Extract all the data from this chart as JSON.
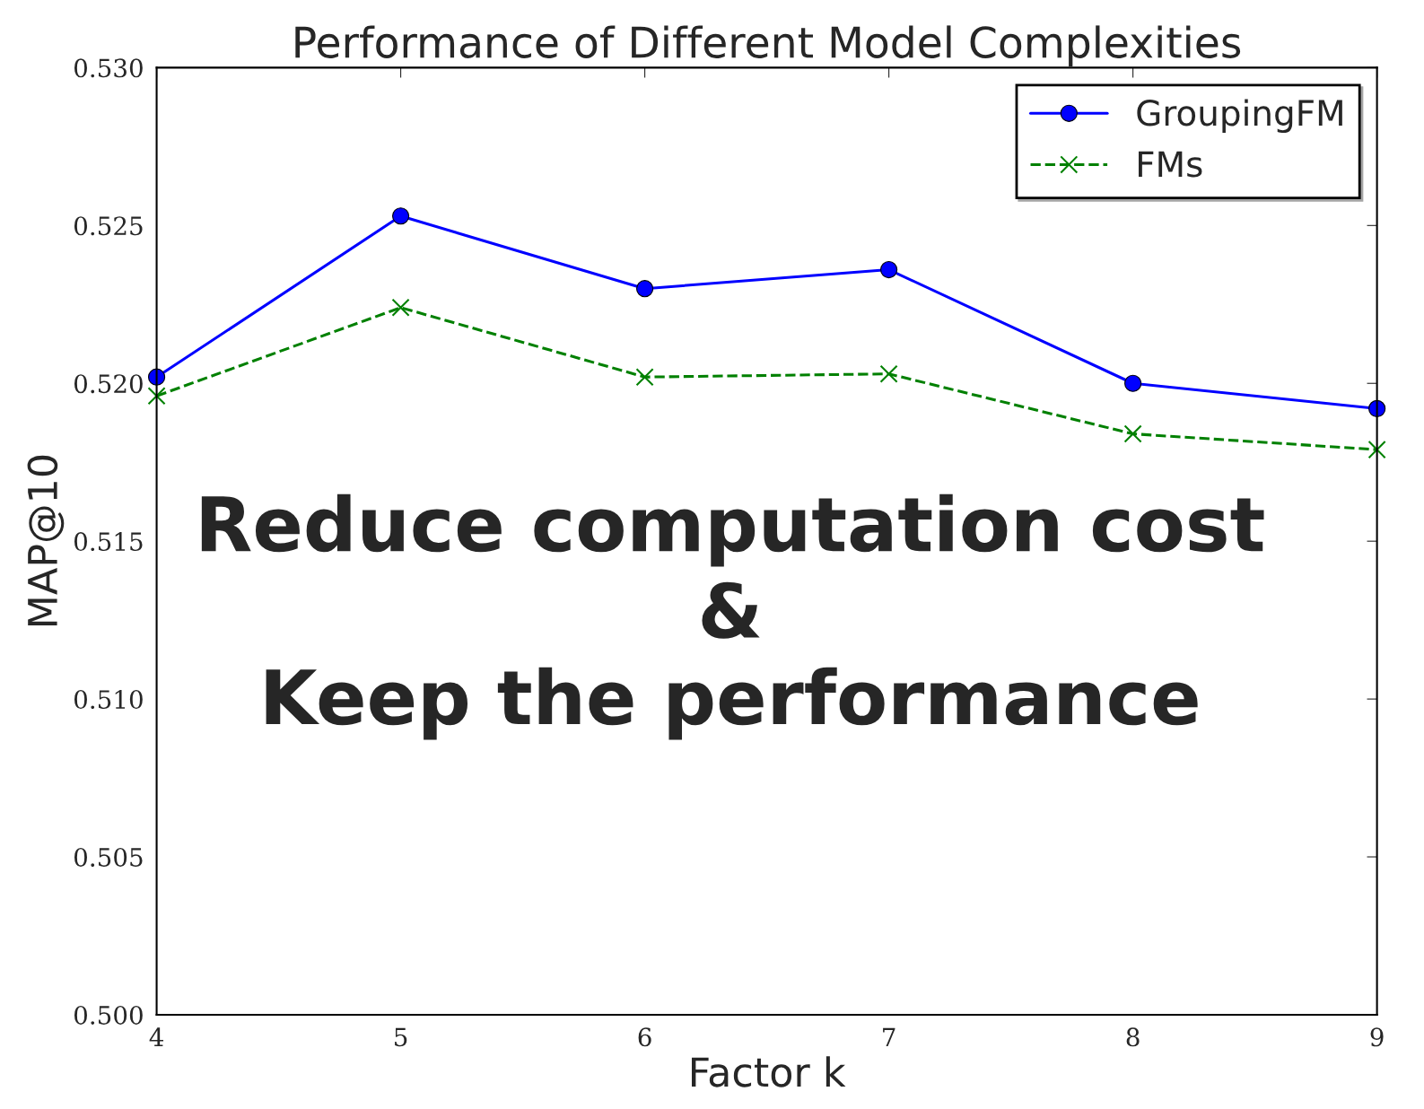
{
  "chart_data": {
    "type": "line",
    "title": "Performance of Different Model Complexities",
    "xlabel": "Factor k",
    "ylabel": "MAP@10",
    "x": [
      4,
      5,
      6,
      7,
      8,
      9
    ],
    "series": [
      {
        "name": "GroupingFM",
        "color": "#0000ff",
        "values": [
          0.5202,
          0.5253,
          0.523,
          0.5236,
          0.52,
          0.5192
        ],
        "marker": "circle",
        "line_style": "solid"
      },
      {
        "name": "FMs",
        "color": "#008000",
        "values": [
          0.5196,
          0.5224,
          0.5202,
          0.5203,
          0.5184,
          0.5179
        ],
        "marker": "cross",
        "line_style": "dashed"
      }
    ],
    "xlim": [
      4,
      9
    ],
    "xticks": [
      4,
      5,
      6,
      7,
      8,
      9
    ],
    "ylim": [
      0.5,
      0.53
    ],
    "yticks": [
      {
        "value": 0.5,
        "label": "0.500"
      },
      {
        "value": 0.505,
        "label": "0.505"
      },
      {
        "value": 0.51,
        "label": "0.510"
      },
      {
        "value": 0.515,
        "label": "0.515"
      },
      {
        "value": 0.52,
        "label": "0.520"
      },
      {
        "value": 0.525,
        "label": "0.525"
      },
      {
        "value": 0.53,
        "label": "0.530"
      }
    ],
    "legend": "top right",
    "grid": false,
    "annotations": [
      "Reduce computation cost\n&\nKeep the performance"
    ]
  }
}
